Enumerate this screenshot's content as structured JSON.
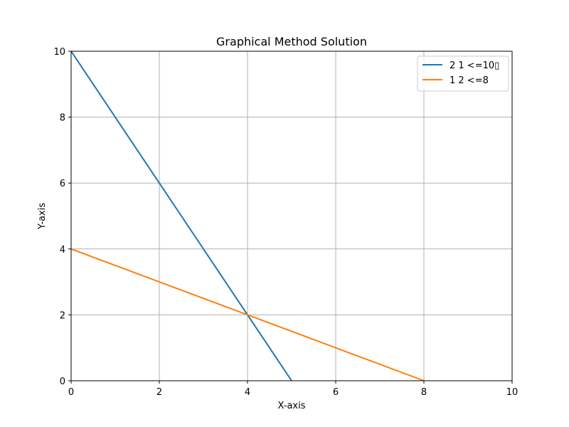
{
  "chart_data": {
    "type": "line",
    "title": "Graphical Method Solution",
    "xlabel": "X-axis",
    "ylabel": "Y-axis",
    "xlim": [
      0,
      10
    ],
    "ylim": [
      0,
      10
    ],
    "xticks": [
      0,
      2,
      4,
      6,
      8,
      10
    ],
    "yticks": [
      0,
      2,
      4,
      6,
      8,
      10
    ],
    "grid": true,
    "legend_position": "top-right",
    "series": [
      {
        "name": "2 1 <=10▯",
        "color": "#1f77b4",
        "points": [
          [
            0,
            10
          ],
          [
            5,
            0
          ]
        ]
      },
      {
        "name": "1 2 <=8",
        "color": "#ff7f0e",
        "points": [
          [
            0,
            4
          ],
          [
            8,
            0
          ]
        ]
      }
    ]
  }
}
